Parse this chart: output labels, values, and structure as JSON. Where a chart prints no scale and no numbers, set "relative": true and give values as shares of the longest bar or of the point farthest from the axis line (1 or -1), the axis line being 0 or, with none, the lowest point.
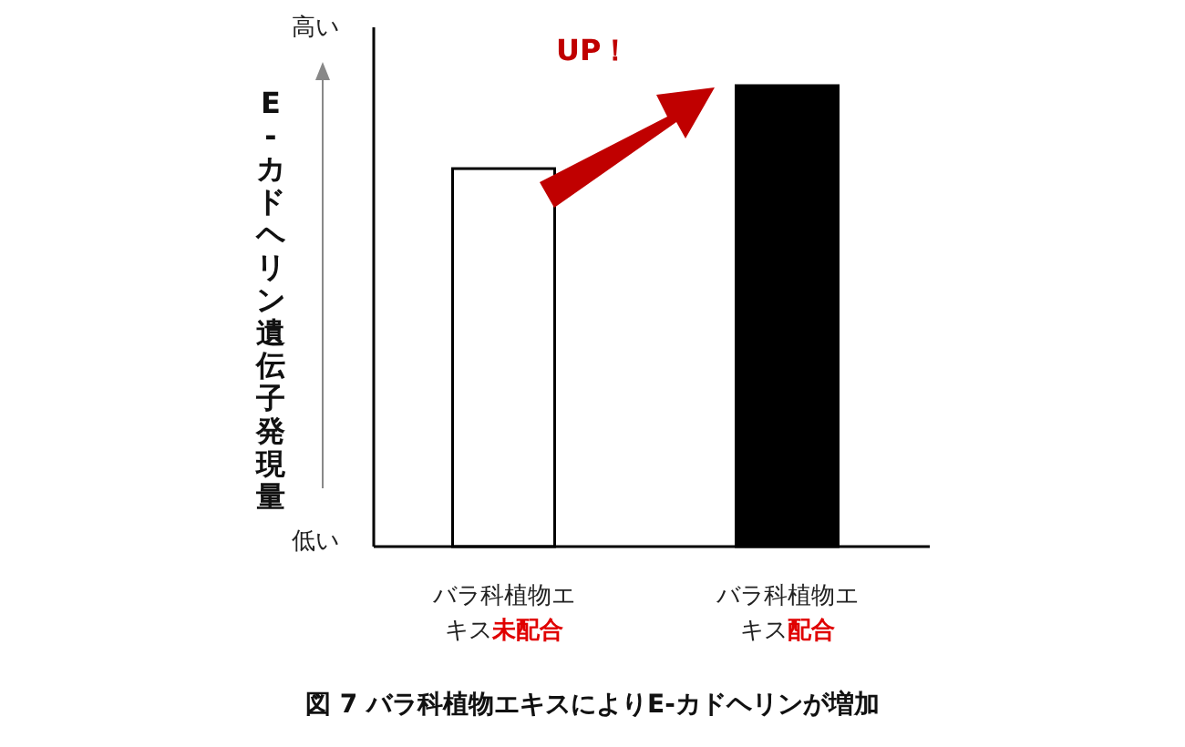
{
  "chart_data": {
    "type": "bar",
    "relative": true,
    "title": "図 7 バラ科植物エキスによりE-カドヘリンが増加",
    "ylabel": "E-カドヘリン遺伝子発現量",
    "categories": [
      "バラ科植物エキス**未配合**",
      "バラ科植物エキス**配合**"
    ],
    "values": [
      0.82,
      1
    ],
    "colors": [
      "#ffffff",
      "#000000"
    ],
    "annotations": [
      "高い",
      "低い",
      "UP！"
    ]
  }
}
